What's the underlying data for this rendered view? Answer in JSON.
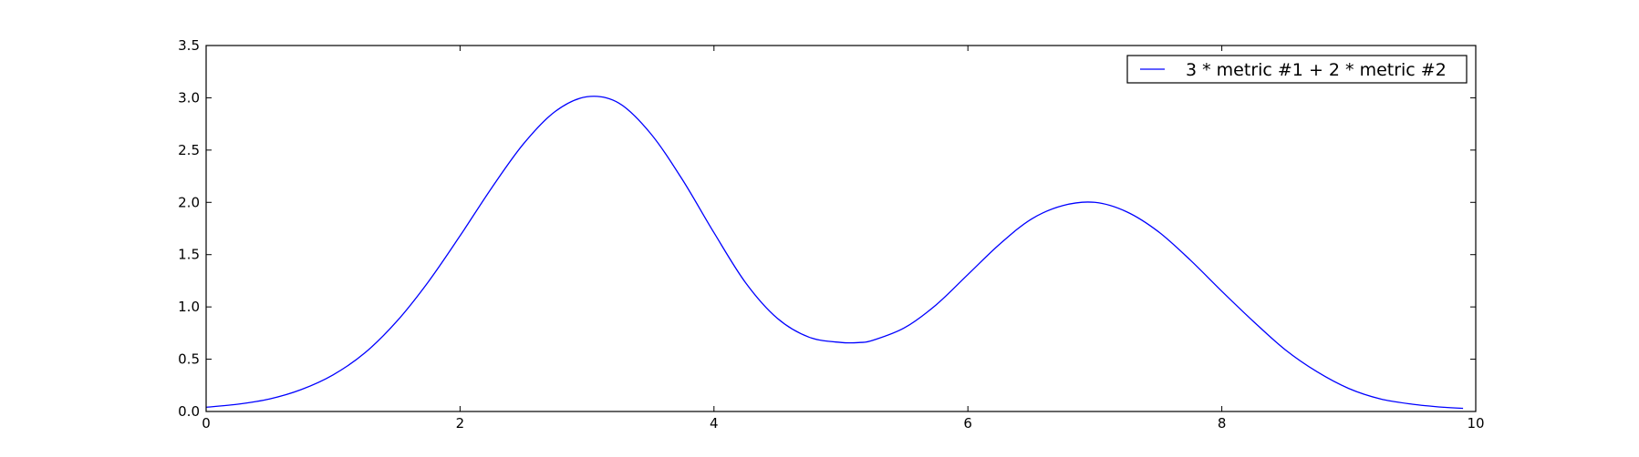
{
  "chart_data": {
    "type": "line",
    "title": "",
    "xlabel": "",
    "ylabel": "",
    "xlim": [
      0,
      10
    ],
    "ylim": [
      0,
      3.5
    ],
    "grid": false,
    "legend_position": "top-right",
    "x_ticks": [
      "0",
      "2",
      "4",
      "6",
      "8",
      "10"
    ],
    "y_ticks": [
      "0.0",
      "0.5",
      "1.0",
      "1.5",
      "2.0",
      "2.5",
      "3.0",
      "3.5"
    ],
    "series": [
      {
        "name": "3 * metric #1 + 2 * metric #2",
        "color": "#0000ff",
        "x": [
          0,
          0.25,
          0.5,
          0.75,
          1.0,
          1.25,
          1.5,
          1.75,
          2.0,
          2.25,
          2.5,
          2.75,
          3.0,
          3.25,
          3.5,
          3.75,
          4.0,
          4.25,
          4.5,
          4.75,
          5.0,
          5.15,
          5.25,
          5.5,
          5.75,
          6.0,
          6.25,
          6.5,
          6.75,
          7.0,
          7.25,
          7.5,
          7.75,
          8.0,
          8.25,
          8.5,
          8.75,
          9.0,
          9.25,
          9.5,
          9.75,
          9.9
        ],
        "values": [
          0.04,
          0.07,
          0.12,
          0.21,
          0.35,
          0.56,
          0.86,
          1.24,
          1.68,
          2.14,
          2.56,
          2.87,
          3.01,
          2.95,
          2.66,
          2.22,
          1.71,
          1.23,
          0.89,
          0.71,
          0.66,
          0.66,
          0.68,
          0.8,
          1.02,
          1.31,
          1.6,
          1.84,
          1.97,
          2.0,
          1.91,
          1.72,
          1.45,
          1.15,
          0.86,
          0.59,
          0.38,
          0.22,
          0.12,
          0.07,
          0.04,
          0.03
        ]
      }
    ]
  }
}
